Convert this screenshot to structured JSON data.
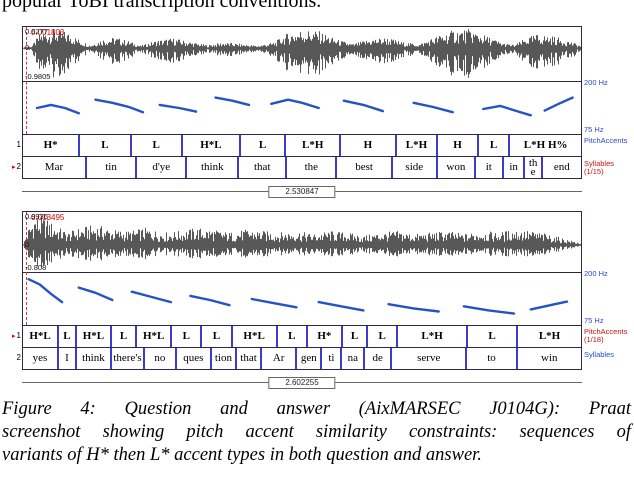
{
  "header": {
    "top_text": "popular ToBI transcription conventions."
  },
  "caption": {
    "lines": [
      "Figure 4: Question and answer (AixMARSEC J0104G): Praat",
      "screenshot showing pitch accent similarity constraints: sequences of",
      "variants of H* then L* accent types in both question and answer."
    ]
  },
  "colors": {
    "wave": "#101010",
    "pitch": "#2553c6",
    "tier_boundary": "#3b3bd0",
    "cursor_red": "#d00000",
    "label_blue": "#2749c9",
    "label_red": "#cc1111"
  },
  "panels": [
    {
      "cursor_value": "0.001803",
      "amp_top": "0.6277",
      "amp_mid": "0",
      "amp_bot": "-0.9805",
      "hz_top": "200 Hz",
      "hz_bot": "75 Hz",
      "duration": "2.530847",
      "wave": {
        "mid": 0.39,
        "envelope": [
          [
            0,
            0.03
          ],
          [
            0.015,
            0.1
          ],
          [
            0.03,
            0.75
          ],
          [
            0.055,
            0.95
          ],
          [
            0.08,
            0.8
          ],
          [
            0.105,
            0.35
          ],
          [
            0.12,
            0.15
          ],
          [
            0.14,
            0.45
          ],
          [
            0.165,
            0.55
          ],
          [
            0.19,
            0.35
          ],
          [
            0.21,
            0.12
          ],
          [
            0.24,
            0.4
          ],
          [
            0.27,
            0.5
          ],
          [
            0.3,
            0.3
          ],
          [
            0.33,
            0.15
          ],
          [
            0.36,
            0.3
          ],
          [
            0.39,
            0.2
          ],
          [
            0.42,
            0.12
          ],
          [
            0.45,
            0.3
          ],
          [
            0.47,
            0.7
          ],
          [
            0.5,
            0.95
          ],
          [
            0.53,
            0.85
          ],
          [
            0.56,
            0.45
          ],
          [
            0.59,
            0.2
          ],
          [
            0.62,
            0.45
          ],
          [
            0.65,
            0.55
          ],
          [
            0.68,
            0.3
          ],
          [
            0.71,
            0.2
          ],
          [
            0.74,
            0.6
          ],
          [
            0.77,
            0.9
          ],
          [
            0.8,
            0.95
          ],
          [
            0.83,
            0.6
          ],
          [
            0.86,
            0.25
          ],
          [
            0.88,
            0.15
          ],
          [
            0.9,
            0.5
          ],
          [
            0.92,
            0.7
          ],
          [
            0.95,
            0.6
          ],
          [
            0.98,
            0.35
          ],
          [
            1,
            0.1
          ]
        ]
      },
      "pitch_segments": [
        [
          [
            0.025,
            0.5
          ],
          [
            0.05,
            0.44
          ],
          [
            0.075,
            0.5
          ],
          [
            0.1,
            0.6
          ]
        ],
        [
          [
            0.13,
            0.34
          ],
          [
            0.16,
            0.4
          ],
          [
            0.19,
            0.48
          ],
          [
            0.215,
            0.58
          ]
        ],
        [
          [
            0.245,
            0.44
          ],
          [
            0.28,
            0.5
          ],
          [
            0.31,
            0.57
          ]
        ],
        [
          [
            0.345,
            0.3
          ],
          [
            0.375,
            0.36
          ],
          [
            0.405,
            0.44
          ]
        ],
        [
          [
            0.445,
            0.42
          ],
          [
            0.475,
            0.34
          ],
          [
            0.5,
            0.4
          ],
          [
            0.53,
            0.5
          ]
        ],
        [
          [
            0.575,
            0.36
          ],
          [
            0.61,
            0.44
          ],
          [
            0.645,
            0.56
          ]
        ],
        [
          [
            0.7,
            0.4
          ],
          [
            0.735,
            0.48
          ],
          [
            0.77,
            0.58
          ]
        ],
        [
          [
            0.825,
            0.52
          ],
          [
            0.855,
            0.46
          ],
          [
            0.885,
            0.56
          ],
          [
            0.91,
            0.64
          ]
        ],
        [
          [
            0.935,
            0.55
          ],
          [
            0.96,
            0.42
          ],
          [
            0.985,
            0.3
          ]
        ]
      ],
      "tiers": [
        {
          "number": "1",
          "selected": false,
          "name": "PitchAccents",
          "count": "",
          "name_color": "#2749c9",
          "cells": [
            {
              "label": "H*",
              "w": 9.9
            },
            {
              "label": "L",
              "w": 9.2
            },
            {
              "label": "L",
              "w": 9.2
            },
            {
              "label": "H*L",
              "w": 10.4
            },
            {
              "label": "L",
              "w": 8.1
            },
            {
              "label": "L*H",
              "w": 9.9
            },
            {
              "label": "H",
              "w": 9.9
            },
            {
              "label": "L*H",
              "w": 7.5
            },
            {
              "label": "H",
              "w": 7.2
            },
            {
              "label": "L",
              "w": 5.7
            },
            {
              "label": "L*H H%",
              "w": 13.0
            }
          ]
        },
        {
          "number": "2",
          "selected": true,
          "name": "Syllables",
          "count": "(1/15)",
          "name_color": "#cc1111",
          "cells": [
            {
              "label": "Mar",
              "w": 11.1
            },
            {
              "label": "tin",
              "w": 9.0
            },
            {
              "label": "d'ye",
              "w": 9.0
            },
            {
              "label": "think",
              "w": 9.3
            },
            {
              "label": "that",
              "w": 8.6
            },
            {
              "label": "the",
              "w": 9.0
            },
            {
              "label": "best",
              "w": 9.9
            },
            {
              "label": "side",
              "w": 8.1
            },
            {
              "label": "won",
              "w": 6.8
            },
            {
              "label": "it",
              "w": 5.0
            },
            {
              "label": "in",
              "w": 3.9
            },
            {
              "label": "th e",
              "w": 3.1
            },
            {
              "label": "end",
              "w": 7.2
            }
          ]
        }
      ]
    },
    {
      "cursor_value": "0.013495",
      "amp_top": "0.9936",
      "amp_mid": "0",
      "amp_bot": "-0.808",
      "hz_top": "200 Hz",
      "hz_bot": "75 Hz",
      "duration": "2.602255",
      "wave": {
        "mid": 0.55,
        "envelope": [
          [
            0,
            0.05
          ],
          [
            0.008,
            0.5
          ],
          [
            0.02,
            0.95
          ],
          [
            0.04,
            0.85
          ],
          [
            0.06,
            0.6
          ],
          [
            0.08,
            0.4
          ],
          [
            0.1,
            0.55
          ],
          [
            0.13,
            0.65
          ],
          [
            0.16,
            0.5
          ],
          [
            0.19,
            0.45
          ],
          [
            0.22,
            0.55
          ],
          [
            0.25,
            0.4
          ],
          [
            0.28,
            0.45
          ],
          [
            0.31,
            0.55
          ],
          [
            0.34,
            0.5
          ],
          [
            0.37,
            0.4
          ],
          [
            0.4,
            0.5
          ],
          [
            0.43,
            0.45
          ],
          [
            0.46,
            0.4
          ],
          [
            0.49,
            0.45
          ],
          [
            0.52,
            0.35
          ],
          [
            0.55,
            0.45
          ],
          [
            0.58,
            0.4
          ],
          [
            0.61,
            0.3
          ],
          [
            0.64,
            0.4
          ],
          [
            0.67,
            0.45
          ],
          [
            0.7,
            0.35
          ],
          [
            0.73,
            0.4
          ],
          [
            0.76,
            0.45
          ],
          [
            0.79,
            0.35
          ],
          [
            0.82,
            0.45
          ],
          [
            0.85,
            0.4
          ],
          [
            0.88,
            0.5
          ],
          [
            0.91,
            0.45
          ],
          [
            0.94,
            0.35
          ],
          [
            0.97,
            0.2
          ],
          [
            1,
            0.06
          ]
        ]
      },
      "pitch_segments": [
        [
          [
            0.01,
            0.12
          ],
          [
            0.03,
            0.22
          ],
          [
            0.05,
            0.4
          ],
          [
            0.07,
            0.56
          ]
        ],
        [
          [
            0.1,
            0.28
          ],
          [
            0.13,
            0.38
          ],
          [
            0.16,
            0.52
          ]
        ],
        [
          [
            0.195,
            0.36
          ],
          [
            0.23,
            0.46
          ],
          [
            0.265,
            0.56
          ]
        ],
        [
          [
            0.3,
            0.44
          ],
          [
            0.335,
            0.52
          ],
          [
            0.37,
            0.62
          ]
        ],
        [
          [
            0.41,
            0.5
          ],
          [
            0.45,
            0.58
          ],
          [
            0.49,
            0.66
          ]
        ],
        [
          [
            0.53,
            0.56
          ],
          [
            0.57,
            0.64
          ],
          [
            0.61,
            0.72
          ]
        ],
        [
          [
            0.655,
            0.6
          ],
          [
            0.7,
            0.68
          ],
          [
            0.745,
            0.74
          ]
        ],
        [
          [
            0.79,
            0.64
          ],
          [
            0.835,
            0.72
          ],
          [
            0.88,
            0.78
          ]
        ],
        [
          [
            0.91,
            0.7
          ],
          [
            0.945,
            0.62
          ],
          [
            0.975,
            0.55
          ]
        ]
      ],
      "tiers": [
        {
          "number": "1",
          "selected": true,
          "name": "PitchAccents",
          "count": "(1/18)",
          "name_color": "#cc1111",
          "cells": [
            {
              "label": "H*L",
              "w": 6.1
            },
            {
              "label": "L",
              "w": 3.2
            },
            {
              "label": "H*L",
              "w": 6.3
            },
            {
              "label": "L",
              "w": 4.5
            },
            {
              "label": "H*L",
              "w": 6.3
            },
            {
              "label": "L",
              "w": 5.4
            },
            {
              "label": "L",
              "w": 5.4
            },
            {
              "label": "H*L",
              "w": 8.1
            },
            {
              "label": "L",
              "w": 5.4
            },
            {
              "label": "H*",
              "w": 6.3
            },
            {
              "label": "L",
              "w": 4.5
            },
            {
              "label": "L",
              "w": 5.4
            },
            {
              "label": "L*H",
              "w": 12.5
            },
            {
              "label": "L",
              "w": 9.0
            },
            {
              "label": "L*H",
              "w": 11.6
            }
          ]
        },
        {
          "number": "2",
          "selected": false,
          "name": "Syllables",
          "count": "",
          "name_color": "#2749c9",
          "cells": [
            {
              "label": "yes",
              "w": 6.1
            },
            {
              "label": "I",
              "w": 3.2
            },
            {
              "label": "think",
              "w": 6.3
            },
            {
              "label": "there's",
              "w": 5.9
            },
            {
              "label": "no",
              "w": 5.7
            },
            {
              "label": "ques",
              "w": 6.3
            },
            {
              "label": "tion",
              "w": 4.5
            },
            {
              "label": "that",
              "w": 4.5
            },
            {
              "label": "Ar",
              "w": 6.3
            },
            {
              "label": "gen",
              "w": 4.5
            },
            {
              "label": "ti",
              "w": 3.6
            },
            {
              "label": "na",
              "w": 4.1
            },
            {
              "label": "de",
              "w": 4.8
            },
            {
              "label": "serve",
              "w": 13.5
            },
            {
              "label": "to",
              "w": 9.0
            },
            {
              "label": "win",
              "w": 11.7
            }
          ]
        }
      ]
    }
  ]
}
